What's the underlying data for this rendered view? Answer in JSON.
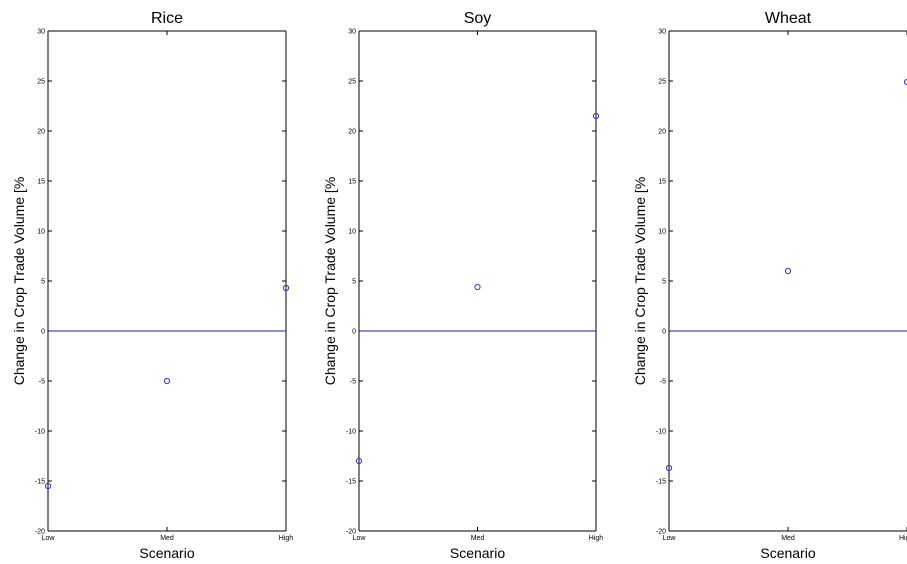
{
  "chart_data": [
    {
      "type": "scatter",
      "title": "Rice",
      "xlabel": "Scenario",
      "ylabel": "Change in Crop Trade Volume [%",
      "categories": [
        "Low",
        "Med",
        "High"
      ],
      "values": [
        -15.5,
        -5.0,
        4.3
      ],
      "ylim": [
        -20,
        30
      ],
      "yticks": [
        -20,
        -15,
        -10,
        -5,
        0,
        5,
        10,
        15,
        20,
        25,
        30
      ],
      "reference_line": 0,
      "marker_color": "#3333cc",
      "line_color": "#1a1aa6",
      "grid": false
    },
    {
      "type": "scatter",
      "title": "Soy",
      "xlabel": "Scenario",
      "ylabel": "Change in Crop Trade Volume [%",
      "categories": [
        "Low",
        "Med",
        "High"
      ],
      "values": [
        -13.0,
        4.4,
        21.5
      ],
      "ylim": [
        -20,
        30
      ],
      "yticks": [
        -20,
        -15,
        -10,
        -5,
        0,
        5,
        10,
        15,
        20,
        25,
        30
      ],
      "reference_line": 0,
      "marker_color": "#3333cc",
      "line_color": "#1a1aa6",
      "grid": false
    },
    {
      "type": "scatter",
      "title": "Wheat",
      "xlabel": "Scenario",
      "ylabel": "Change in Crop Trade Volume [%",
      "categories": [
        "Low",
        "Med",
        "Hig"
      ],
      "values": [
        -13.7,
        6.0,
        24.9
      ],
      "ylim": [
        -20,
        30
      ],
      "yticks": [
        -20,
        -15,
        -10,
        -5,
        0,
        5,
        10,
        15,
        20,
        25,
        30
      ],
      "reference_line": 0,
      "marker_color": "#3333cc",
      "line_color": "#1a1aa6",
      "grid": false
    }
  ]
}
